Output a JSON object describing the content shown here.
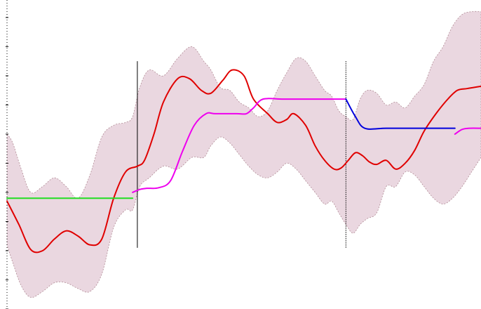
{
  "chart_data": {
    "type": "line",
    "title": "",
    "xlabel": "",
    "ylabel": "",
    "xlim": [
      0,
      10
    ],
    "ylim": [
      -2.0,
      3.3
    ],
    "grid": false,
    "legend": "none",
    "band": {
      "color": "#ead7e0",
      "x": [
        0,
        0.12,
        0.3,
        0.5,
        0.75,
        1.0,
        1.25,
        1.5,
        1.75,
        2.0,
        2.25,
        2.5,
        2.65,
        2.8,
        3.0,
        3.3,
        3.6,
        3.9,
        4.15,
        4.3,
        4.5,
        4.7,
        4.9,
        5.1,
        5.3,
        5.5,
        5.7,
        5.9,
        6.1,
        6.3,
        6.5,
        6.7,
        6.85,
        7.0,
        7.15,
        7.3,
        7.45,
        7.6,
        7.8,
        8.0,
        8.2,
        8.4,
        8.6,
        8.8,
        9.0,
        9.2,
        9.4,
        9.6,
        9.8,
        10.0
      ],
      "upper": [
        1.0,
        0.85,
        0.4,
        0.0,
        0.1,
        0.25,
        0.1,
        -0.1,
        0.3,
        0.95,
        1.15,
        1.2,
        1.3,
        1.8,
        2.1,
        2.0,
        2.3,
        2.5,
        2.25,
        2.1,
        1.8,
        1.75,
        1.55,
        1.45,
        1.3,
        1.4,
        1.75,
        2.05,
        2.3,
        2.25,
        2.0,
        1.75,
        1.65,
        1.4,
        1.3,
        1.25,
        1.6,
        1.75,
        1.7,
        1.5,
        1.55,
        1.45,
        1.65,
        1.85,
        2.25,
        2.5,
        2.85,
        3.05,
        3.1,
        3.1
      ],
      "lower": [
        -0.9,
        -1.2,
        -1.6,
        -1.8,
        -1.7,
        -1.55,
        -1.55,
        -1.65,
        -1.7,
        -1.4,
        -0.6,
        -0.3,
        -0.3,
        0.1,
        0.25,
        0.45,
        0.4,
        0.6,
        0.6,
        0.8,
        0.95,
        0.85,
        0.65,
        0.45,
        0.3,
        0.25,
        0.35,
        0.5,
        0.4,
        0.2,
        0.0,
        -0.2,
        -0.15,
        -0.35,
        -0.55,
        -0.7,
        -0.55,
        -0.45,
        -0.35,
        0.1,
        0.1,
        0.35,
        0.3,
        0.1,
        -0.1,
        -0.2,
        -0.1,
        0.1,
        0.35,
        0.6
      ]
    },
    "series": [
      {
        "color": "#e00000",
        "x": [
          0,
          0.25,
          0.5,
          0.75,
          1.0,
          1.25,
          1.5,
          1.75,
          2.0,
          2.25,
          2.5,
          2.75,
          2.9,
          3.1,
          3.3,
          3.6,
          3.85,
          4.1,
          4.3,
          4.55,
          4.75,
          5.0,
          5.2,
          5.5,
          5.7,
          5.9,
          6.05,
          6.3,
          6.5,
          6.7,
          6.9,
          7.05,
          7.2,
          7.35,
          7.5,
          7.65,
          7.8,
          8.0,
          8.2,
          8.4,
          8.6,
          8.8,
          9.05,
          9.3,
          9.5,
          9.7,
          9.85,
          10.0
        ],
        "y": [
          -0.15,
          -0.55,
          -0.98,
          -1.0,
          -0.8,
          -0.66,
          -0.75,
          -0.9,
          -0.8,
          -0.1,
          0.35,
          0.45,
          0.55,
          1.0,
          1.55,
          1.95,
          1.95,
          1.75,
          1.7,
          1.92,
          2.1,
          2.0,
          1.6,
          1.35,
          1.2,
          1.25,
          1.35,
          1.15,
          0.8,
          0.55,
          0.4,
          0.42,
          0.55,
          0.68,
          0.63,
          0.52,
          0.48,
          0.55,
          0.4,
          0.5,
          0.72,
          1.05,
          1.35,
          1.6,
          1.75,
          1.78,
          1.8,
          1.82
        ]
      },
      {
        "color": "#ee00ee",
        "x": [
          2.65,
          2.8,
          2.95,
          3.2,
          3.45,
          3.7,
          3.95,
          4.2,
          4.4,
          4.85,
          5.05,
          5.2,
          5.4,
          5.8,
          6.2,
          6.6,
          7.15
        ],
        "y": [
          0.0,
          0.05,
          0.07,
          0.08,
          0.2,
          0.7,
          1.15,
          1.35,
          1.35,
          1.35,
          1.35,
          1.45,
          1.6,
          1.6,
          1.6,
          1.6,
          1.6
        ]
      },
      {
        "color": "#ee00ee",
        "x": [
          9.45,
          9.6,
          9.75,
          10.0
        ],
        "y": [
          1.0,
          1.08,
          1.1,
          1.1
        ]
      },
      {
        "color": "#22dd22",
        "x": [
          0,
          2.65
        ],
        "y": [
          -0.1,
          -0.1
        ]
      },
      {
        "color": "#0000dd",
        "x": [
          7.15,
          7.35,
          7.55,
          8.0,
          8.6,
          9.45
        ],
        "y": [
          1.6,
          1.3,
          1.1,
          1.1,
          1.1,
          1.1
        ]
      }
    ],
    "vlines": [
      {
        "x": 2.75,
        "ymin": -0.95,
        "ymax": 2.25,
        "style": "solid"
      },
      {
        "x": 7.15,
        "ymin": -0.95,
        "ymax": 2.25,
        "style": "dotted"
      }
    ],
    "y_ticks": [
      -2.0,
      -1.5,
      -1.0,
      -0.5,
      0.0,
      0.5,
      1.0,
      1.5,
      2.0,
      2.5,
      3.0
    ]
  }
}
